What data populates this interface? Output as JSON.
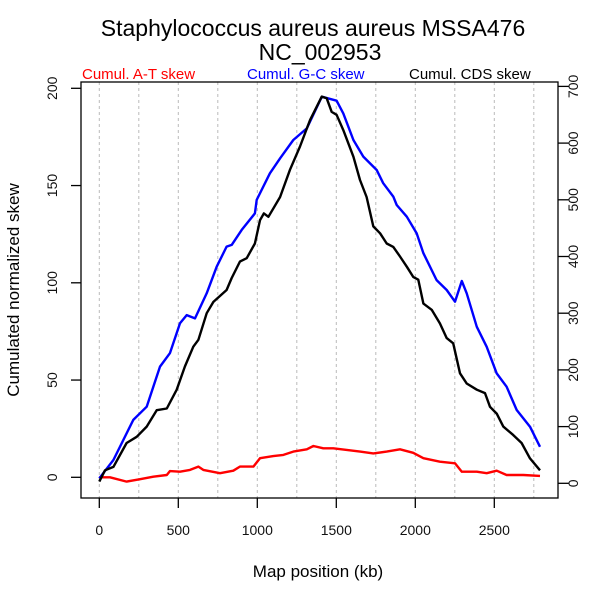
{
  "chart_data": {
    "type": "line",
    "title": "Staphylococcus aureus aureus MSSA476",
    "subtitle": "NC_002953",
    "xlabel": "Map position (kb)",
    "ylabel": "Cumulated normalized skew",
    "xlim": [
      0,
      2800
    ],
    "ylim_left": [
      0,
      200
    ],
    "ylim_right": [
      0,
      700
    ],
    "x_ticks": [
      0,
      500,
      1000,
      1500,
      2000,
      2500
    ],
    "x_tick_labels": [
      "0",
      "500",
      "1000",
      "1500",
      "2000",
      "2500"
    ],
    "y_left_ticks": [
      0,
      50,
      100,
      150,
      200
    ],
    "y_left_tick_labels": [
      "0",
      "50",
      "100",
      "150",
      "200"
    ],
    "y_right_ticks": [
      0,
      100,
      200,
      300,
      400,
      500,
      600,
      700
    ],
    "y_right_tick_labels": [
      "0",
      "100",
      "200",
      "300",
      "400",
      "500",
      "600",
      "700"
    ],
    "x_gridlines_every": 250,
    "grid": "vertical dotted",
    "legend": [
      {
        "label": "Cumul. A-T skew",
        "color": "#ff0000"
      },
      {
        "label": "Cumul. G-C skew",
        "color": "#0000ff"
      },
      {
        "label": "Cumul. CDS skew",
        "color": "#000000"
      }
    ],
    "legend_placement": "top",
    "series": [
      {
        "name": "Cumul. A-T skew",
        "color": "#ff0000",
        "axis": "left",
        "x": [
          0,
          68,
          173,
          258,
          342,
          427,
          447,
          511,
          574,
          627,
          658,
          764,
          848,
          890,
          975,
          1017,
          1101,
          1165,
          1228,
          1313,
          1355,
          1418,
          1481,
          1566,
          1650,
          1734,
          1819,
          1903,
          1987,
          2051,
          2156,
          2251,
          2294,
          2389,
          2452,
          2515,
          2578,
          2684,
          2789
        ],
        "y": [
          0,
          0,
          -2.2,
          -1,
          0.3,
          1.2,
          3.2,
          2.9,
          3.8,
          5.5,
          3.8,
          2.1,
          3.4,
          5.5,
          5.5,
          9.8,
          10.9,
          11.5,
          13.2,
          14.4,
          16.1,
          14.9,
          14.9,
          14.1,
          13.2,
          12.3,
          13.2,
          14.4,
          12.6,
          9.8,
          8,
          7.2,
          2.9,
          2.9,
          2.1,
          3.4,
          1.2,
          1.2,
          0.7
        ]
      },
      {
        "name": "Cumul. G-C skew",
        "color": "#0000ff",
        "axis": "left",
        "x": [
          0,
          89,
          215,
          300,
          384,
          447,
          511,
          553,
          606,
          680,
          743,
          806,
          838,
          901,
          985,
          996,
          1080,
          1144,
          1228,
          1313,
          1408,
          1502,
          1544,
          1608,
          1671,
          1756,
          1797,
          1861,
          1882,
          1946,
          2009,
          2051,
          2135,
          2199,
          2251,
          2294,
          2325,
          2389,
          2452,
          2515,
          2578,
          2642,
          2726,
          2789
        ],
        "y": [
          -0.5,
          8.9,
          29.5,
          36.3,
          56.9,
          63.8,
          79.2,
          83.4,
          81.7,
          94.6,
          108.3,
          118.6,
          119.5,
          127.2,
          135.7,
          142.6,
          156.3,
          164,
          173.4,
          179.4,
          195.7,
          193.6,
          187.1,
          173.4,
          164.9,
          158,
          151.2,
          144.3,
          140,
          134,
          125.4,
          115.2,
          101.4,
          96.3,
          90.3,
          100.9,
          94.6,
          77.4,
          67.1,
          53.4,
          46.6,
          34.6,
          26,
          15.7
        ]
      },
      {
        "name": "Cumul. CDS skew",
        "color": "#000000",
        "axis": "right",
        "x": [
          0,
          36,
          89,
          173,
          237,
          300,
          363,
          427,
          490,
          542,
          595,
          627,
          680,
          722,
          806,
          838,
          890,
          933,
          985,
          1017,
          1042,
          1070,
          1144,
          1207,
          1270,
          1334,
          1408,
          1439,
          1471,
          1502,
          1544,
          1608,
          1650,
          1692,
          1734,
          1777,
          1819,
          1861,
          1903,
          1946,
          1987,
          2019,
          2051,
          2104,
          2156,
          2199,
          2240,
          2283,
          2325,
          2389,
          2441,
          2473,
          2515,
          2557,
          2620,
          2673,
          2726,
          2789
        ],
        "y": [
          3,
          23,
          29,
          71,
          82,
          100,
          129,
          132,
          165,
          206,
          241,
          253,
          300,
          320,
          341,
          362,
          391,
          397,
          423,
          464,
          476,
          470,
          505,
          553,
          594,
          641,
          682,
          679,
          655,
          650,
          623,
          576,
          535,
          505,
          453,
          441,
          423,
          417,
          400,
          382,
          364,
          359,
          317,
          306,
          282,
          256,
          247,
          194,
          176,
          165,
          159,
          135,
          123,
          100,
          85,
          71,
          44,
          23
        ]
      }
    ]
  }
}
